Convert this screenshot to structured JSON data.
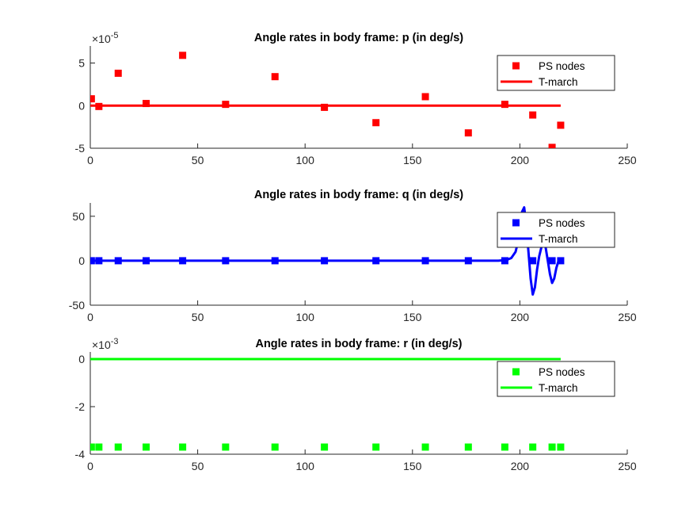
{
  "chart_data": [
    {
      "type": "line",
      "title": "Angle rates in body frame: p (in deg/s)",
      "xlim": [
        0,
        250
      ],
      "ylim": [
        -5,
        7
      ],
      "xticks": [
        0,
        50,
        100,
        150,
        200,
        250
      ],
      "yticks": [
        -5,
        0,
        5
      ],
      "ytick_labels": [
        "-5",
        "0",
        "5"
      ],
      "exponent": {
        "base": "×10",
        "power": "-5"
      },
      "grid": false,
      "legend_position": "top-right",
      "color": "#ff0000",
      "series": [
        {
          "name": "PS nodes",
          "kind": "markers",
          "x": [
            0.5,
            4,
            13,
            26,
            43,
            63,
            86,
            109,
            133,
            156,
            176,
            193,
            206,
            215,
            219
          ],
          "y": [
            0.8,
            -0.1,
            3.8,
            0.25,
            5.9,
            0.15,
            3.4,
            -0.2,
            -2.0,
            1.05,
            -3.2,
            0.15,
            -1.1,
            -4.9,
            -2.3
          ]
        },
        {
          "name": "T-march",
          "kind": "line",
          "x": [
            0,
            219
          ],
          "y": [
            0,
            0
          ]
        }
      ]
    },
    {
      "type": "line",
      "title": "Angle rates in body frame: q (in deg/s)",
      "xlim": [
        0,
        250
      ],
      "ylim": [
        -50,
        65
      ],
      "xticks": [
        0,
        50,
        100,
        150,
        200,
        250
      ],
      "yticks": [
        -50,
        0,
        50
      ],
      "ytick_labels": [
        "-50",
        "0",
        "50"
      ],
      "grid": false,
      "legend_position": "top-right",
      "color": "#0000ff",
      "series": [
        {
          "name": "PS nodes",
          "kind": "markers",
          "x": [
            0.5,
            4,
            13,
            26,
            43,
            63,
            86,
            109,
            133,
            156,
            176,
            193,
            206,
            215,
            219
          ],
          "y": [
            0,
            0,
            0,
            0,
            0,
            0,
            0,
            0,
            0,
            0,
            0,
            0,
            0,
            0,
            0
          ]
        },
        {
          "name": "T-march",
          "kind": "line",
          "x": [
            0,
            190,
            194,
            196,
            198,
            200,
            201,
            202,
            203,
            204,
            205,
            206,
            207,
            208,
            209,
            210,
            211,
            212,
            213,
            214,
            215,
            216,
            217,
            218,
            219
          ],
          "y": [
            0,
            0,
            1,
            3,
            10,
            30,
            55,
            60,
            40,
            10,
            -20,
            -38,
            -30,
            -10,
            5,
            15,
            20,
            15,
            0,
            -15,
            -25,
            -20,
            -8,
            0,
            0
          ]
        }
      ]
    },
    {
      "type": "line",
      "title": "Angle rates in body frame: r (in deg/s)",
      "xlim": [
        0,
        250
      ],
      "ylim": [
        -4,
        0.3
      ],
      "xticks": [
        0,
        50,
        100,
        150,
        200,
        250
      ],
      "yticks": [
        -4,
        -2,
        0
      ],
      "ytick_labels": [
        "-4",
        "-2",
        "0"
      ],
      "exponent": {
        "base": "×10",
        "power": "-3"
      },
      "grid": false,
      "legend_position": "top-right",
      "color": "#00ff00",
      "series": [
        {
          "name": "PS nodes",
          "kind": "markers",
          "x": [
            0.5,
            4,
            13,
            26,
            43,
            63,
            86,
            109,
            133,
            156,
            176,
            193,
            206,
            215,
            219
          ],
          "y": [
            -3.7,
            -3.7,
            -3.7,
            -3.7,
            -3.7,
            -3.7,
            -3.7,
            -3.7,
            -3.7,
            -3.7,
            -3.7,
            -3.7,
            -3.7,
            -3.7,
            -3.7
          ]
        },
        {
          "name": "T-march",
          "kind": "line",
          "x": [
            0,
            219
          ],
          "y": [
            0,
            0
          ]
        }
      ]
    }
  ]
}
